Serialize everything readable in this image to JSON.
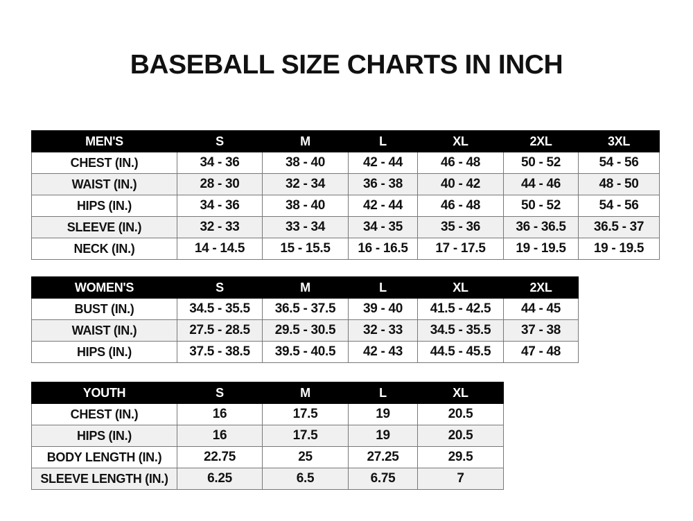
{
  "title": "BASEBALL SIZE CHARTS IN INCH",
  "tables": [
    {
      "name": "mens",
      "headers": [
        "MEN'S",
        "S",
        "M",
        "L",
        "XL",
        "2XL",
        "3XL"
      ],
      "rows": [
        [
          "CHEST (IN.)",
          "34 - 36",
          "38 - 40",
          "42 - 44",
          "46 - 48",
          "50 - 52",
          "54 - 56"
        ],
        [
          "WAIST (IN.)",
          "28 - 30",
          "32 - 34",
          "36 - 38",
          "40 - 42",
          "44 - 46",
          "48 - 50"
        ],
        [
          "HIPS (IN.)",
          "34 - 36",
          "38 - 40",
          "42 - 44",
          "46 - 48",
          "50 - 52",
          "54 - 56"
        ],
        [
          "SLEEVE (IN.)",
          "32 - 33",
          "33 - 34",
          "34 - 35",
          "35 - 36",
          "36 - 36.5",
          "36.5 - 37"
        ],
        [
          "NECK (IN.)",
          "14 - 14.5",
          "15 - 15.5",
          "16 - 16.5",
          "17 - 17.5",
          "19 - 19.5",
          "19 - 19.5"
        ]
      ]
    },
    {
      "name": "womens",
      "headers": [
        "WOMEN'S",
        "S",
        "M",
        "L",
        "XL",
        "2XL"
      ],
      "rows": [
        [
          "BUST (IN.)",
          "34.5 - 35.5",
          "36.5 - 37.5",
          "39 - 40",
          "41.5 - 42.5",
          "44 - 45"
        ],
        [
          "WAIST (IN.)",
          "27.5 - 28.5",
          "29.5 - 30.5",
          "32 - 33",
          "34.5 - 35.5",
          "37 - 38"
        ],
        [
          "HIPS (IN.)",
          "37.5 - 38.5",
          "39.5 - 40.5",
          "42 - 43",
          "44.5 - 45.5",
          "47 - 48"
        ]
      ]
    },
    {
      "name": "youth",
      "headers": [
        "YOUTH",
        "S",
        "M",
        "L",
        "XL"
      ],
      "rows": [
        [
          "CHEST (IN.)",
          "16",
          "17.5",
          "19",
          "20.5"
        ],
        [
          "HIPS (IN.)",
          "16",
          "17.5",
          "19",
          "20.5"
        ],
        [
          "BODY LENGTH (IN.)",
          "22.75",
          "25",
          "27.25",
          "29.5"
        ],
        [
          "SLEEVE LENGTH (IN.)",
          "6.25",
          "6.5",
          "6.75",
          "7"
        ]
      ]
    }
  ]
}
